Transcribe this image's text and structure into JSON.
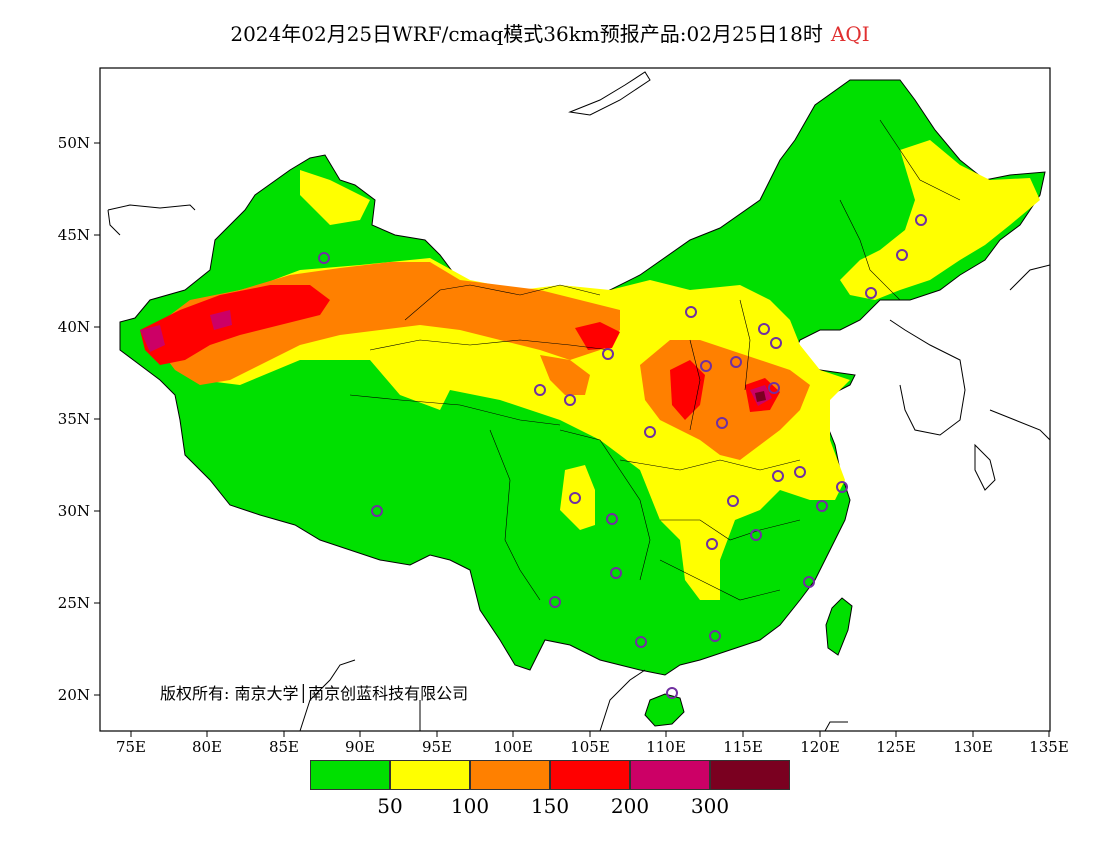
{
  "title": {
    "main": "2024年02月25日WRF/cmaq模式36km预报产品:02月25日18时",
    "variable": "AQI"
  },
  "axes": {
    "lat_labels": [
      "50N",
      "45N",
      "40N",
      "35N",
      "30N",
      "25N",
      "20N"
    ],
    "lon_labels": [
      "75E",
      "80E",
      "85E",
      "90E",
      "95E",
      "100E",
      "105E",
      "110E",
      "115E",
      "120E",
      "125E",
      "130E",
      "135E"
    ]
  },
  "copyright": "版权所有: 南京大学│南京创蓝科技有限公司",
  "legend": {
    "colors": [
      "#00e000",
      "#ffff00",
      "#ff8000",
      "#ff0000",
      "#cc0066",
      "#7a0020"
    ],
    "labels": [
      "50",
      "100",
      "150",
      "200",
      "300"
    ]
  }
}
